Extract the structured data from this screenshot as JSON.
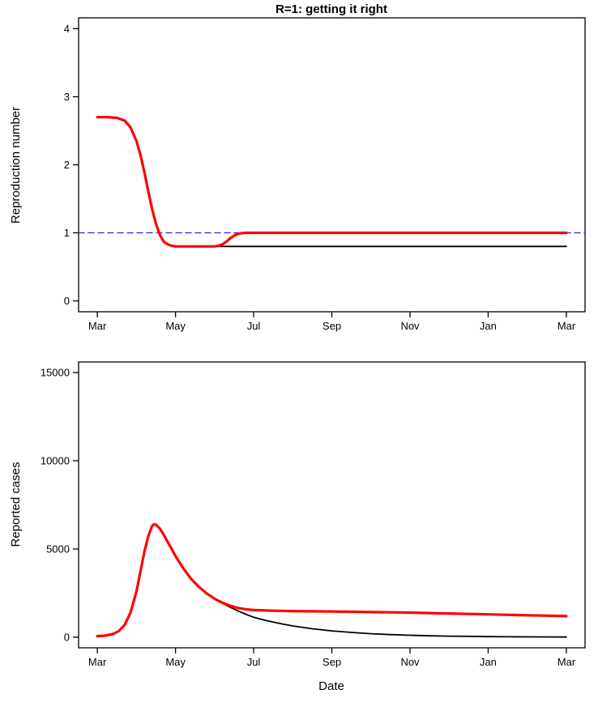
{
  "figure": {
    "background": "#ffffff",
    "panel_count": 2
  },
  "chart_data": [
    {
      "type": "line",
      "title": "R=1: getting it right",
      "xlabel": "",
      "ylabel": "Reproduction number",
      "xlim": [
        0,
        12
      ],
      "ylim": [
        0,
        4
      ],
      "grid": false,
      "legend": "none",
      "yticks": [
        0,
        1,
        2,
        3,
        4
      ],
      "xticks": {
        "positions": [
          0,
          2,
          4,
          6,
          8,
          10,
          12
        ],
        "labels": [
          "Mar",
          "May",
          "Jul",
          "Sep",
          "Nov",
          "Jan",
          "Mar"
        ]
      },
      "series": [
        {
          "name": "reference-R-equals-1",
          "color": "#2222ff",
          "width": 1.3,
          "dash": "7,5",
          "points": [
            [
              -0.48,
              1
            ],
            [
              12.48,
              1
            ]
          ]
        },
        {
          "name": "R-stays-low",
          "color": "#000000",
          "width": 1.8,
          "points": [
            [
              3.05,
              0.8
            ],
            [
              12,
              0.8
            ]
          ]
        },
        {
          "name": "R-returns-to-one",
          "color": "#ff0000",
          "width": 3.2,
          "points": [
            [
              0,
              2.7
            ],
            [
              0.25,
              2.7
            ],
            [
              0.5,
              2.69
            ],
            [
              0.7,
              2.65
            ],
            [
              0.85,
              2.55
            ],
            [
              1.0,
              2.35
            ],
            [
              1.1,
              2.15
            ],
            [
              1.2,
              1.9
            ],
            [
              1.3,
              1.62
            ],
            [
              1.4,
              1.35
            ],
            [
              1.5,
              1.13
            ],
            [
              1.6,
              0.97
            ],
            [
              1.7,
              0.87
            ],
            [
              1.8,
              0.83
            ],
            [
              1.9,
              0.81
            ],
            [
              2.0,
              0.8
            ],
            [
              2.5,
              0.8
            ],
            [
              3.0,
              0.8
            ],
            [
              3.1,
              0.81
            ],
            [
              3.2,
              0.83
            ],
            [
              3.3,
              0.87
            ],
            [
              3.4,
              0.92
            ],
            [
              3.5,
              0.96
            ],
            [
              3.6,
              0.985
            ],
            [
              3.7,
              0.995
            ],
            [
              3.8,
              1.0
            ],
            [
              4.0,
              1.0
            ],
            [
              12,
              1.0
            ]
          ]
        }
      ]
    },
    {
      "type": "line",
      "title": "",
      "xlabel": "Date",
      "ylabel": "Reported cases",
      "xlim": [
        0,
        12
      ],
      "ylim": [
        0,
        15000
      ],
      "grid": false,
      "legend": "none",
      "yticks": [
        0,
        5000,
        10000,
        15000
      ],
      "xticks": {
        "positions": [
          0,
          2,
          4,
          6,
          8,
          10,
          12
        ],
        "labels": [
          "Mar",
          "May",
          "Jul",
          "Sep",
          "Nov",
          "Jan",
          "Mar"
        ]
      },
      "series": [
        {
          "name": "cases-R-stays-low",
          "color": "#000000",
          "width": 1.8,
          "points": [
            [
              3.0,
              2180
            ],
            [
              3.2,
              1930
            ],
            [
              3.4,
              1700
            ],
            [
              3.6,
              1490
            ],
            [
              3.8,
              1300
            ],
            [
              4.0,
              1130
            ],
            [
              4.25,
              985
            ],
            [
              4.5,
              855
            ],
            [
              4.75,
              740
            ],
            [
              5.0,
              640
            ],
            [
              5.5,
              480
            ],
            [
              6.0,
              360
            ],
            [
              6.5,
              270
            ],
            [
              7.0,
              200
            ],
            [
              7.5,
              150
            ],
            [
              8.0,
              110
            ],
            [
              8.5,
              80
            ],
            [
              9.0,
              60
            ],
            [
              9.5,
              45
            ],
            [
              10.0,
              33
            ],
            [
              10.5,
              24
            ],
            [
              11.0,
              18
            ],
            [
              11.5,
              13
            ],
            [
              12.0,
              10
            ]
          ]
        },
        {
          "name": "cases-R-returns-to-one",
          "color": "#ff0000",
          "width": 3.2,
          "points": [
            [
              0,
              60
            ],
            [
              0.2,
              90
            ],
            [
              0.4,
              180
            ],
            [
              0.55,
              350
            ],
            [
              0.7,
              700
            ],
            [
              0.85,
              1400
            ],
            [
              1.0,
              2600
            ],
            [
              1.1,
              3700
            ],
            [
              1.2,
              4800
            ],
            [
              1.3,
              5700
            ],
            [
              1.4,
              6300
            ],
            [
              1.45,
              6400
            ],
            [
              1.5,
              6380
            ],
            [
              1.6,
              6150
            ],
            [
              1.7,
              5800
            ],
            [
              1.8,
              5400
            ],
            [
              1.9,
              5000
            ],
            [
              2.0,
              4600
            ],
            [
              2.2,
              3900
            ],
            [
              2.4,
              3300
            ],
            [
              2.6,
              2850
            ],
            [
              2.8,
              2480
            ],
            [
              3.0,
              2180
            ],
            [
              3.2,
              1950
            ],
            [
              3.4,
              1780
            ],
            [
              3.6,
              1660
            ],
            [
              3.8,
              1580
            ],
            [
              4.0,
              1540
            ],
            [
              4.5,
              1500
            ],
            [
              5.0,
              1480
            ],
            [
              5.5,
              1470
            ],
            [
              6.0,
              1455
            ],
            [
              6.5,
              1440
            ],
            [
              7.0,
              1425
            ],
            [
              7.5,
              1410
            ],
            [
              8.0,
              1390
            ],
            [
              8.5,
              1370
            ],
            [
              9.0,
              1345
            ],
            [
              9.5,
              1320
            ],
            [
              10.0,
              1295
            ],
            [
              10.5,
              1270
            ],
            [
              11.0,
              1245
            ],
            [
              11.5,
              1220
            ],
            [
              12.0,
              1195
            ]
          ]
        }
      ]
    }
  ]
}
